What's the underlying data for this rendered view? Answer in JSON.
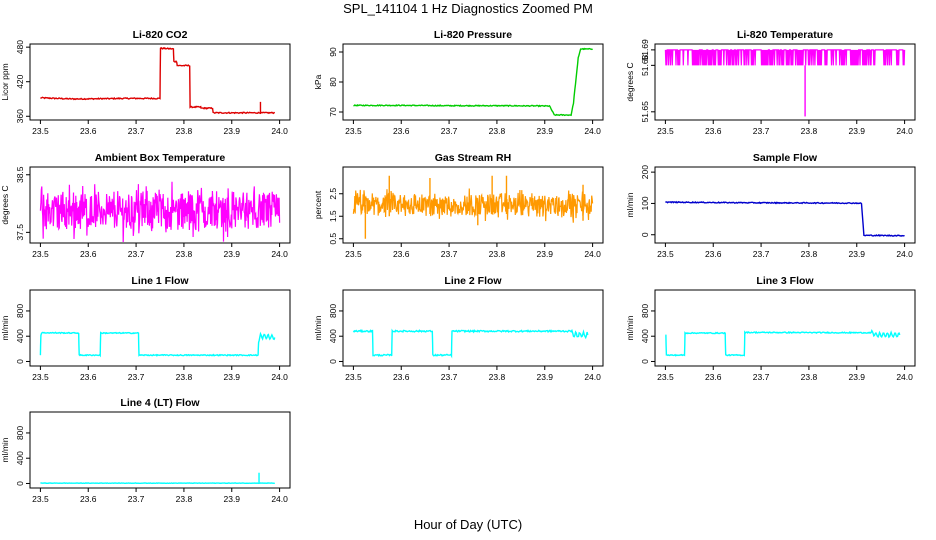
{
  "figure": {
    "title": "SPL_141104  1 Hz Diagnostics Zoomed PM",
    "xlabel": "Hour of Day (UTC)"
  },
  "colors": {
    "red": "#dd0000",
    "green": "#00cc00",
    "magenta": "#ff00ff",
    "orange": "#ff9900",
    "blue": "#0000cc",
    "cyan": "#00ffff"
  },
  "chart_data": [
    {
      "type": "line",
      "title": "Li-820 CO2",
      "ylabel": "Licor ppm",
      "color": "red",
      "xlim": [
        23.5,
        24.0
      ],
      "ylim": [
        357,
        482
      ],
      "xticks": [
        "23.5",
        "23.6",
        "23.7",
        "23.8",
        "23.9",
        "24.0"
      ],
      "yticks": [
        {
          "v": 360,
          "label": "360"
        },
        {
          "v": 420,
          "label": "420"
        },
        {
          "v": 480,
          "label": "480"
        }
      ],
      "noise": 1,
      "x": [
        23.5,
        23.57,
        23.68,
        23.75,
        23.751,
        23.778,
        23.779,
        23.785,
        23.786,
        23.812,
        23.813,
        23.835,
        23.836,
        23.86,
        23.861,
        23.945,
        23.96,
        23.961,
        23.99
      ],
      "y": [
        392,
        390,
        391,
        391,
        478,
        477,
        455,
        455,
        448,
        448,
        376,
        376,
        374,
        374,
        366,
        366,
        366,
        366,
        366
      ],
      "spikes": [
        {
          "x": 23.96,
          "y1": 365,
          "y2": 385
        }
      ]
    },
    {
      "type": "line",
      "title": "Li-820 Pressure",
      "ylabel": "kPa",
      "color": "green",
      "xlim": [
        23.5,
        24.0
      ],
      "ylim": [
        68,
        92
      ],
      "xticks": [
        "23.5",
        "23.6",
        "23.7",
        "23.8",
        "23.9",
        "24.0"
      ],
      "yticks": [
        {
          "v": 70,
          "label": "70"
        },
        {
          "v": 80,
          "label": "80"
        },
        {
          "v": 90,
          "label": "90"
        }
      ],
      "noise": 0.15,
      "x": [
        23.5,
        23.6,
        23.7,
        23.8,
        23.91,
        23.92,
        23.955,
        23.96,
        23.97,
        23.975,
        24.0
      ],
      "y": [
        72.2,
        72.2,
        72.1,
        72.1,
        72.0,
        69.0,
        69.0,
        73,
        88,
        91,
        91
      ]
    },
    {
      "type": "band",
      "title": "Li-820 Temperature",
      "ylabel": "degrees C",
      "color": "magenta",
      "xlim": [
        23.5,
        24.0
      ],
      "ylim": [
        51.646,
        51.6925
      ],
      "xticks": [
        "23.5",
        "23.6",
        "23.7",
        "23.8",
        "23.9",
        "24.0"
      ],
      "yticks": [
        {
          "v": 51.65,
          "label": "51.65"
        },
        {
          "v": 51.68,
          "label": "51.68"
        },
        {
          "v": 51.69,
          "label": "51.69"
        }
      ],
      "lo": 51.68,
      "hi": 51.69,
      "mode": "toggle",
      "spikes": [
        {
          "x": 23.792,
          "y1": 51.647,
          "y2": 51.68
        }
      ]
    },
    {
      "type": "band",
      "title": "Ambient Box Temperature",
      "ylabel": "degrees C",
      "color": "magenta",
      "xlim": [
        23.5,
        24.0
      ],
      "ylim": [
        37.35,
        38.6
      ],
      "xticks": [
        "23.5",
        "23.6",
        "23.7",
        "23.8",
        "23.9",
        "24.0"
      ],
      "yticks": [
        {
          "v": 37.5,
          "label": "37.5"
        },
        {
          "v": 38.5,
          "label": "38.5"
        }
      ],
      "lo": 37.55,
      "hi": 38.2,
      "spread": 0.25,
      "mode": "noise"
    },
    {
      "type": "band",
      "title": "Gas Stream RH",
      "ylabel": "percent",
      "color": "orange",
      "xlim": [
        23.5,
        24.0
      ],
      "ylim": [
        0.4,
        3.6
      ],
      "xticks": [
        "23.5",
        "23.6",
        "23.7",
        "23.8",
        "23.9",
        "24.0"
      ],
      "yticks": [
        {
          "v": 0.5,
          "label": "0.5"
        },
        {
          "v": 1.5,
          "label": "1.5"
        },
        {
          "v": 2.5,
          "label": "2.5"
        }
      ],
      "lo": 1.5,
      "hi": 2.5,
      "spread": 0.35,
      "mode": "noise",
      "spikes": [
        {
          "x": 23.525,
          "y1": 0.5,
          "y2": 2
        },
        {
          "x": 23.575,
          "y1": 1.5,
          "y2": 3.3
        },
        {
          "x": 23.66,
          "y1": 1.6,
          "y2": 3.2
        },
        {
          "x": 23.79,
          "y1": 1.6,
          "y2": 3.3
        },
        {
          "x": 23.82,
          "y1": 1.6,
          "y2": 3.3
        },
        {
          "x": 23.76,
          "y1": 1.1,
          "y2": 2
        },
        {
          "x": 23.98,
          "y1": 1.3,
          "y2": 2.9
        }
      ]
    },
    {
      "type": "line",
      "title": "Sample Flow",
      "ylabel": "ml/min",
      "color": "blue",
      "xlim": [
        23.5,
        24.0
      ],
      "ylim": [
        -20,
        210
      ],
      "xticks": [
        "23.5",
        "23.6",
        "23.7",
        "23.8",
        "23.9",
        "24.0"
      ],
      "yticks": [
        {
          "v": 0,
          "label": "0"
        },
        {
          "v": 100,
          "label": "100"
        },
        {
          "v": 200,
          "label": "200"
        }
      ],
      "noise": 1.5,
      "x": [
        23.5,
        23.7,
        23.9,
        23.91,
        23.915,
        23.92,
        24.0
      ],
      "y": [
        104,
        102,
        101,
        100,
        -2,
        -2,
        -3
      ]
    },
    {
      "type": "line",
      "title": "Line 1 Flow",
      "ylabel": "ml/min",
      "color": "cyan",
      "xlim": [
        23.5,
        24.0
      ],
      "ylim": [
        -40,
        1100
      ],
      "xticks": [
        "23.5",
        "23.6",
        "23.7",
        "23.8",
        "23.9",
        "24.0"
      ],
      "yticks": [
        {
          "v": 0,
          "label": "0"
        },
        {
          "v": 400,
          "label": "400"
        },
        {
          "v": 800,
          "label": "800"
        }
      ],
      "noise": 8,
      "x": [
        23.5,
        23.501,
        23.503,
        23.58,
        23.581,
        23.625,
        23.626,
        23.7,
        23.705,
        23.706,
        23.955,
        23.956,
        23.96,
        23.99
      ],
      "y": [
        100,
        420,
        455,
        450,
        100,
        100,
        450,
        450,
        450,
        100,
        100,
        300,
        400,
        380
      ],
      "wave": {
        "from": 23.958,
        "to": 23.99,
        "amp": 35,
        "period": 0.008
      }
    },
    {
      "type": "line",
      "title": "Line 2 Flow",
      "ylabel": "ml/min",
      "color": "cyan",
      "xlim": [
        23.5,
        24.0
      ],
      "ylim": [
        -40,
        1100
      ],
      "xticks": [
        "23.5",
        "23.6",
        "23.7",
        "23.8",
        "23.9",
        "24.0"
      ],
      "yticks": [
        {
          "v": 0,
          "label": "0"
        },
        {
          "v": 400,
          "label": "400"
        },
        {
          "v": 800,
          "label": "800"
        }
      ],
      "noise": 12,
      "x": [
        23.5,
        23.54,
        23.541,
        23.58,
        23.581,
        23.665,
        23.666,
        23.705,
        23.706,
        23.955,
        23.96,
        23.99
      ],
      "y": [
        480,
        480,
        100,
        100,
        480,
        480,
        100,
        100,
        480,
        480,
        420,
        420
      ],
      "wave": {
        "from": 23.955,
        "to": 23.99,
        "amp": 40,
        "period": 0.008
      }
    },
    {
      "type": "line",
      "title": "Line 3 Flow",
      "ylabel": "ml/min",
      "color": "cyan",
      "xlim": [
        23.5,
        24.0
      ],
      "ylim": [
        -40,
        1100
      ],
      "xticks": [
        "23.5",
        "23.6",
        "23.7",
        "23.8",
        "23.9",
        "24.0"
      ],
      "yticks": [
        {
          "v": 0,
          "label": "0"
        },
        {
          "v": 400,
          "label": "400"
        },
        {
          "v": 800,
          "label": "800"
        }
      ],
      "noise": 8,
      "x": [
        23.5,
        23.501,
        23.502,
        23.54,
        23.541,
        23.625,
        23.626,
        23.665,
        23.666,
        23.93,
        23.94,
        23.99
      ],
      "y": [
        420,
        420,
        100,
        100,
        450,
        450,
        100,
        100,
        460,
        455,
        420,
        420
      ],
      "wave": {
        "from": 23.93,
        "to": 23.99,
        "amp": 35,
        "period": 0.008
      }
    },
    {
      "type": "line",
      "title": "Line 4 (LT) Flow",
      "ylabel": "ml/min",
      "color": "cyan",
      "xlim": [
        23.5,
        24.0
      ],
      "ylim": [
        -40,
        1100
      ],
      "xticks": [
        "23.5",
        "23.6",
        "23.7",
        "23.8",
        "23.9",
        "24.0"
      ],
      "yticks": [
        {
          "v": 0,
          "label": "0"
        },
        {
          "v": 400,
          "label": "400"
        },
        {
          "v": 800,
          "label": "800"
        }
      ],
      "noise": 3,
      "x": [
        23.5,
        23.95,
        23.99
      ],
      "y": [
        5,
        5,
        5
      ],
      "spikes": [
        {
          "x": 23.957,
          "y1": 5,
          "y2": 170
        }
      ]
    }
  ]
}
